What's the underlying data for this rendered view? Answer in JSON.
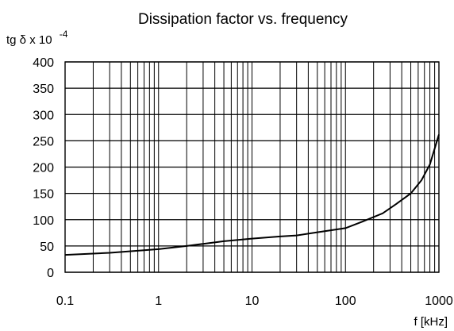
{
  "chart_data": {
    "type": "line",
    "title": "Dissipation factor vs. frequency",
    "ylabel_main": "tg δ x 10",
    "ylabel_exp": "-4",
    "xlabel": "f [kHz]",
    "x_scale": "log",
    "xlim": [
      0.1,
      1000
    ],
    "ylim": [
      0,
      400
    ],
    "grid": true,
    "x_ticks": [
      0.1,
      1,
      10,
      100,
      1000
    ],
    "x_tick_labels": [
      "0.1",
      "1",
      "10",
      "100",
      "1000"
    ],
    "y_ticks": [
      0,
      50,
      100,
      150,
      200,
      250,
      300,
      350,
      400
    ],
    "y_tick_labels": [
      "0",
      "50",
      "100",
      "150",
      "200",
      "250",
      "300",
      "350",
      "400"
    ],
    "series": [
      {
        "x": [
          0.1,
          0.3,
          1,
          2,
          3,
          5,
          10,
          20,
          30,
          50,
          100,
          150,
          250,
          350,
          500,
          650,
          800,
          1000
        ],
        "values": [
          33,
          37,
          44,
          50,
          54,
          59,
          64,
          68,
          70,
          76,
          84,
          96,
          112,
          130,
          150,
          175,
          205,
          262
        ]
      }
    ]
  }
}
